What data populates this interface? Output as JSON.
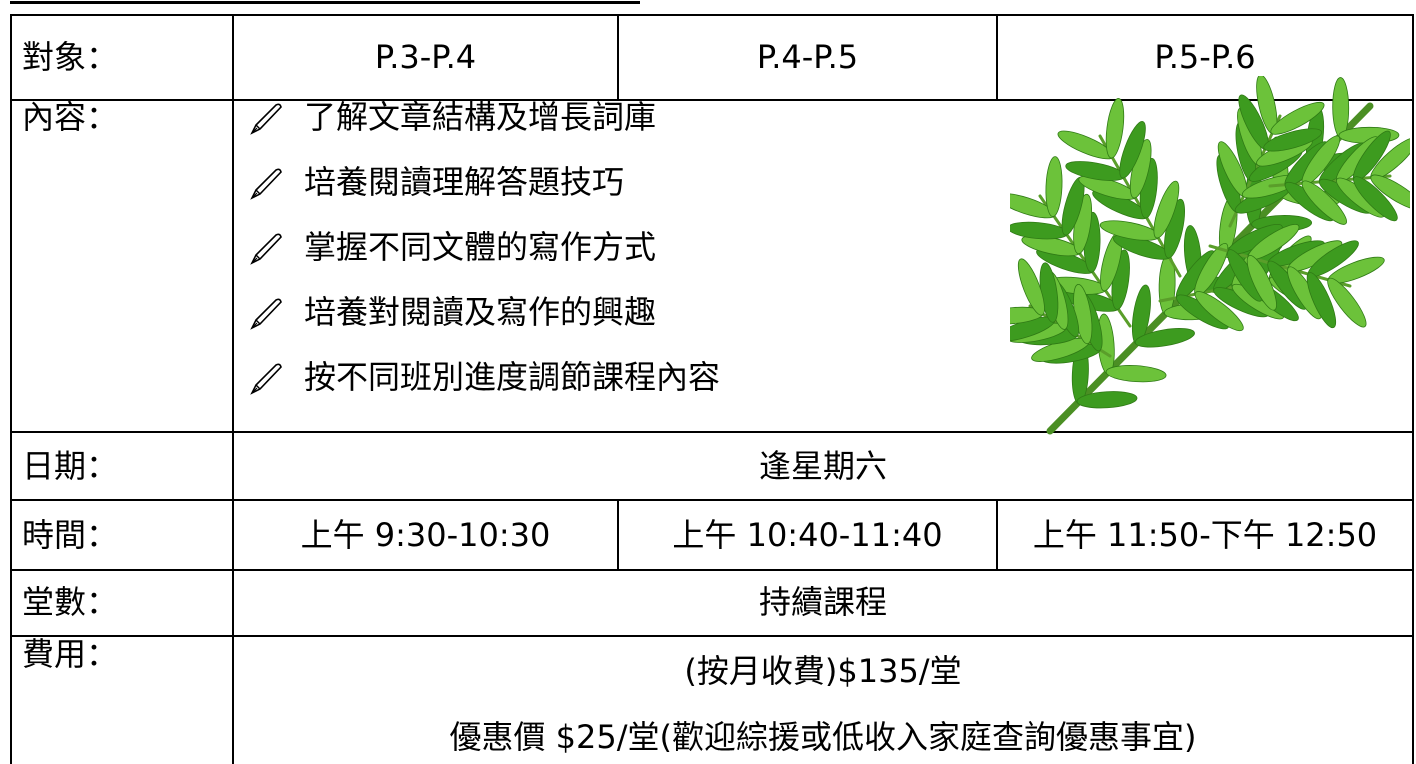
{
  "table": {
    "rows": {
      "target": {
        "label": "對象：",
        "values": [
          "P.3-P.4",
          "P.4-P.5",
          "P.5-P.6"
        ]
      },
      "content": {
        "label": "內容：",
        "items": [
          "了解文章結構及增長詞庫",
          "培養閱讀理解答題技巧",
          "掌握不同文體的寫作方式",
          "培養對閱讀及寫作的興趣",
          "按不同班別進度調節課程內容"
        ]
      },
      "date": {
        "label": "日期：",
        "value": "逢星期六"
      },
      "time": {
        "label": "時間：",
        "values": [
          "上午 9:30-10:30",
          "上午 10:40-11:40",
          "上午 11:50-下午 12:50"
        ]
      },
      "sessions": {
        "label": "堂數：",
        "value": "持續課程"
      },
      "fee": {
        "label": "費用：",
        "lines": [
          "(按月收費)$135/堂",
          "優惠價  $25/堂(歡迎綜援或低收入家庭查詢優惠事宜)"
        ]
      }
    }
  }
}
